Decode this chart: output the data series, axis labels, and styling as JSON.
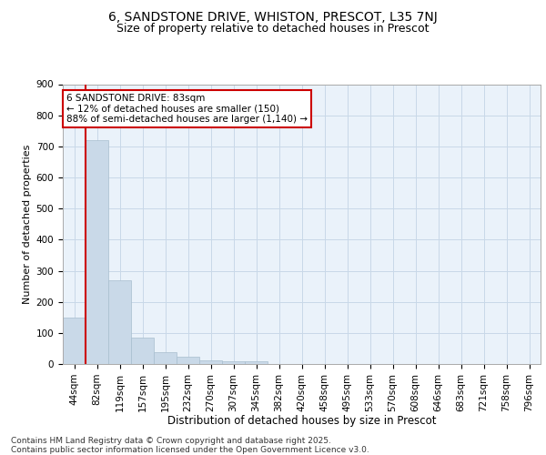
{
  "title1": "6, SANDSTONE DRIVE, WHISTON, PRESCOT, L35 7NJ",
  "title2": "Size of property relative to detached houses in Prescot",
  "xlabel": "Distribution of detached houses by size in Prescot",
  "ylabel": "Number of detached properties",
  "categories": [
    "44sqm",
    "82sqm",
    "119sqm",
    "157sqm",
    "195sqm",
    "232sqm",
    "270sqm",
    "307sqm",
    "345sqm",
    "382sqm",
    "420sqm",
    "458sqm",
    "495sqm",
    "533sqm",
    "570sqm",
    "608sqm",
    "646sqm",
    "683sqm",
    "721sqm",
    "758sqm",
    "796sqm"
  ],
  "values": [
    150,
    720,
    270,
    85,
    37,
    22,
    12,
    8,
    10,
    0,
    0,
    0,
    0,
    0,
    0,
    0,
    0,
    0,
    0,
    0,
    0
  ],
  "bar_color": "#c9d9e8",
  "bar_edgecolor": "#a8bece",
  "grid_color": "#c8d8e8",
  "background_color": "#eaf2fa",
  "vline_x": 1.5,
  "vline_color": "#cc0000",
  "annotation_text": "6 SANDSTONE DRIVE: 83sqm\n← 12% of detached houses are smaller (150)\n88% of semi-detached houses are larger (1,140) →",
  "annotation_box_color": "#cc0000",
  "ylim": [
    0,
    900
  ],
  "yticks": [
    0,
    100,
    200,
    300,
    400,
    500,
    600,
    700,
    800,
    900
  ],
  "footer": "Contains HM Land Registry data © Crown copyright and database right 2025.\nContains public sector information licensed under the Open Government Licence v3.0.",
  "title1_fontsize": 10,
  "title2_fontsize": 9,
  "xlabel_fontsize": 8.5,
  "ylabel_fontsize": 8,
  "tick_fontsize": 7.5,
  "annotation_fontsize": 7.5,
  "footer_fontsize": 6.5
}
